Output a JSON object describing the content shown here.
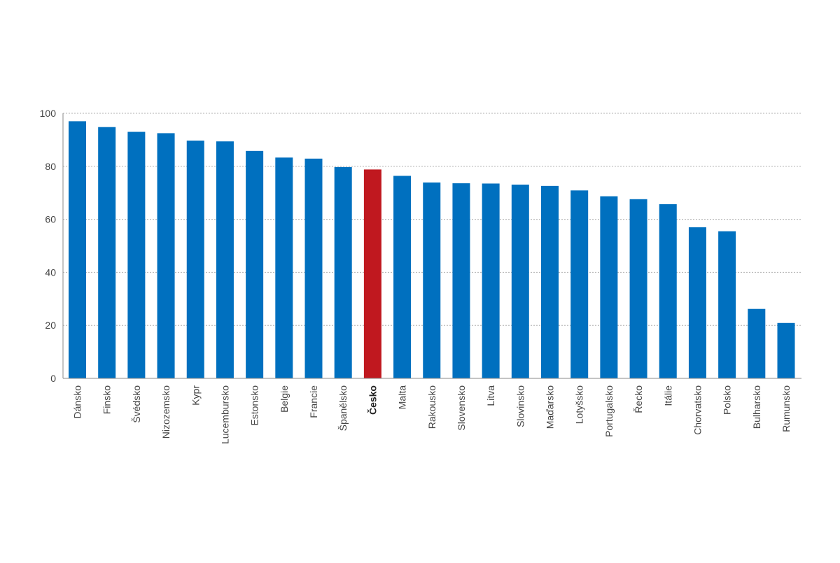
{
  "chart_data": {
    "type": "bar",
    "title": "",
    "xlabel": "",
    "ylabel": "",
    "ylim": [
      0,
      100
    ],
    "yticks": [
      0,
      20,
      40,
      60,
      80,
      100
    ],
    "grid": true,
    "categories": [
      "Dánsko",
      "Finsko",
      "Švédsko",
      "Nizozemsko",
      "Kypr",
      "Lucembursko",
      "Estonsko",
      "Belgie",
      "Francie",
      "Španělsko",
      "Česko",
      "Malta",
      "Rakousko",
      "Slovensko",
      "Litva",
      "Slovinsko",
      "Maďarsko",
      "Lotyšsko",
      "Portugalsko",
      "Řecko",
      "Itálie",
      "Chorvatsko",
      "Polsko",
      "Bulharsko",
      "Rumunsko"
    ],
    "values": [
      97.0,
      94.8,
      93.0,
      92.5,
      89.7,
      89.4,
      85.8,
      83.3,
      82.9,
      79.7,
      78.8,
      76.4,
      73.9,
      73.6,
      73.5,
      73.1,
      72.6,
      70.9,
      68.7,
      67.6,
      65.7,
      57.0,
      55.5,
      26.2,
      20.9
    ],
    "highlight_category": "Česko",
    "colors": {
      "bar": "#0070bf",
      "highlight": "#c0181f",
      "grid": "#b0b0b0",
      "axis": "#888888",
      "text": "#444444"
    }
  }
}
